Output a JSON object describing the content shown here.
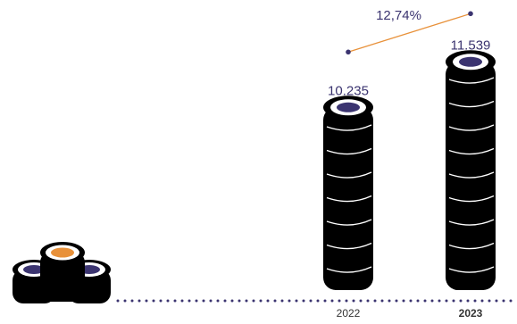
{
  "chart_data": {
    "type": "bar",
    "categories": [
      "2022",
      "2023"
    ],
    "values": [
      10235,
      11539
    ],
    "value_labels": [
      "10.235",
      "11.539"
    ],
    "color": "#000000",
    "ylim": [
      5000,
      12800
    ],
    "growth_label": "12,74%"
  }
}
